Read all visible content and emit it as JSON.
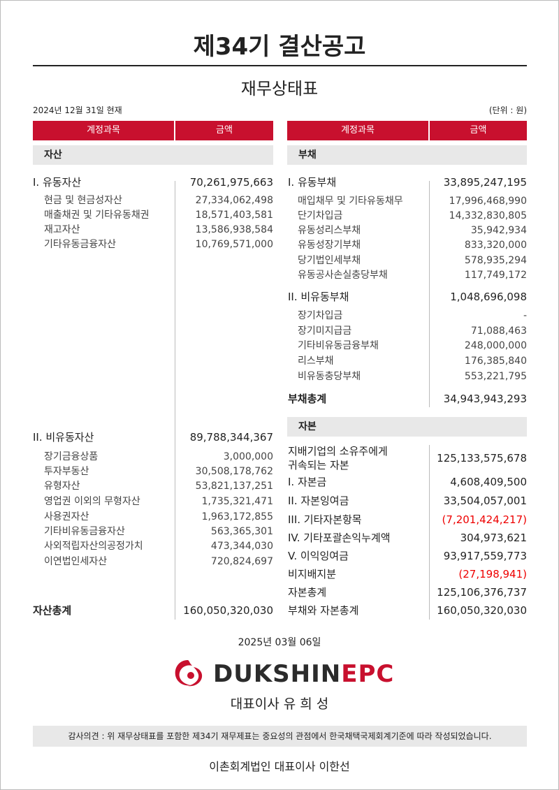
{
  "header": {
    "title": "제34기 결산공고",
    "subtitle": "재무상태표",
    "date": "2024년 12월 31일 현재",
    "unit": "(단위 : 원)"
  },
  "left": {
    "headers": [
      "계정과목",
      "금액"
    ],
    "section": "자산",
    "rows": [
      {
        "label": "I. 유동자산",
        "amount": "70,261,975,663"
      },
      {
        "label": "현금 및 현금성자산",
        "amount": "27,334,062,498"
      },
      {
        "label": "매출채권 및 기타유동채권",
        "amount": "18,571,403,581"
      },
      {
        "label": "재고자산",
        "amount": "13,586,938,584"
      },
      {
        "label": "기타유동금융자산",
        "amount": "10,769,571,000"
      },
      {
        "label": "II. 비유동자산",
        "amount": "89,788,344,367"
      },
      {
        "label": "장기금융상품",
        "amount": "3,000,000"
      },
      {
        "label": "투자부동산",
        "amount": "30,508,178,762"
      },
      {
        "label": "유형자산",
        "amount": "53,821,137,251"
      },
      {
        "label": "영업권 이외의 무형자산",
        "amount": "1,735,321,471"
      },
      {
        "label": "사용권자산",
        "amount": "1,963,172,855"
      },
      {
        "label": "기타비유동금융자산",
        "amount": "563,365,301"
      },
      {
        "label": "사외적립자산의공정가치",
        "amount": "473,344,030"
      },
      {
        "label": "이연법인세자산",
        "amount": "720,824,697"
      },
      {
        "label": "자산총계",
        "amount": "160,050,320,030"
      }
    ]
  },
  "right": {
    "headers": [
      "계정과목",
      "금액"
    ],
    "section": "부채",
    "rows": [
      {
        "label": "I. 유동부채",
        "amount": "33,895,247,195"
      },
      {
        "label": "매입채무 및 기타유동채무",
        "amount": "17,996,468,990"
      },
      {
        "label": "단기차입금",
        "amount": "14,332,830,805"
      },
      {
        "label": "유동성리스부채",
        "amount": "35,942,934"
      },
      {
        "label": "유동성장기부채",
        "amount": "833,320,000"
      },
      {
        "label": "당기법인세부채",
        "amount": "578,935,294"
      },
      {
        "label": "유동공사손실충당부채",
        "amount": "117,749,172"
      },
      {
        "label": "II. 비유동부채",
        "amount": "1,048,696,098"
      },
      {
        "label": "장기차입금",
        "amount": "-"
      },
      {
        "label": "장기미지급금",
        "amount": "71,088,463"
      },
      {
        "label": "기타비유동금융부채",
        "amount": "248,000,000"
      },
      {
        "label": "리스부채",
        "amount": "176,385,840"
      },
      {
        "label": "비유동충당부채",
        "amount": "553,221,795"
      },
      {
        "label": "부채총계",
        "amount": "34,943,943,293"
      }
    ],
    "equity_section": "자본",
    "equity_rows": [
      {
        "label": "지배기업의 소유주에게\n귀속되는 자본",
        "amount": "125,133,575,678"
      },
      {
        "label": "I. 자본금",
        "amount": "4,608,409,500"
      },
      {
        "label": "II. 자본잉여금",
        "amount": "33,504,057,001"
      },
      {
        "label": "III. 기타자본항목",
        "amount": "(7,201,424,217)"
      },
      {
        "label": "IV. 기타포괄손익누계액",
        "amount": "304,973,621"
      },
      {
        "label": "V. 이익잉여금",
        "amount": "93,917,559,773"
      },
      {
        "label": "비지배지분",
        "amount": "(27,198,941)"
      },
      {
        "label": "자본총계",
        "amount": "125,106,376,737"
      },
      {
        "label": "부채와 자본총계",
        "amount": "160,050,320,030"
      }
    ]
  },
  "footer": {
    "date": "2025년 03월 06일",
    "brand_a": "DUKSHIN",
    "brand_b": "EPC",
    "ceo": "대표이사 유 희 성",
    "audit": "감사의견 : 위 재무상태표를 포함한 제34기 재무제표는 중요성의 관점에서 한국채택국제회계기준에 따라 작성되었습니다.",
    "auditor": "이촌회계법인  대표이사 이한선"
  }
}
